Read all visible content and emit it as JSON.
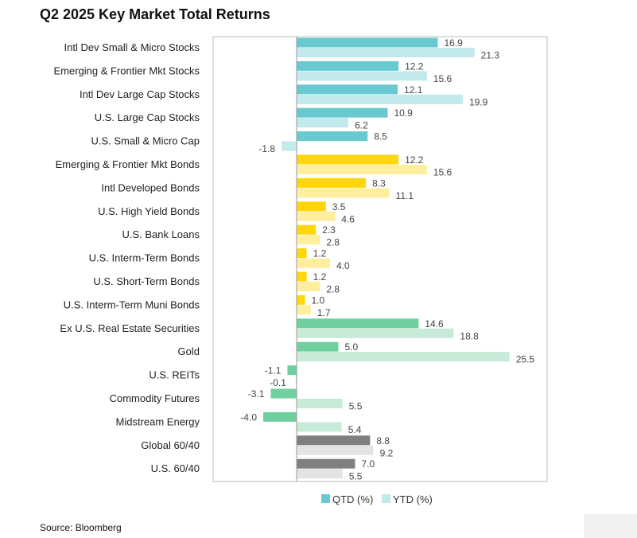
{
  "chart_data": {
    "type": "bar",
    "orientation": "horizontal",
    "title": "Q2 2025 Key Market Total Returns",
    "xlim": [
      -10,
      30
    ],
    "grid": false,
    "legend_position": "bottom",
    "categories": [
      "Intl Dev Small & Micro Stocks",
      "Emerging & Frontier Mkt Stocks",
      "Intl Dev Large Cap Stocks",
      "U.S. Large Cap Stocks",
      "U.S. Small & Micro Cap",
      "Emerging & Frontier Mkt Bonds",
      "Intl Developed Bonds",
      "U.S. High Yield Bonds",
      "U.S. Bank Loans",
      "U.S. Interm-Term Bonds",
      "U.S. Short-Term Bonds",
      "U.S. Interm-Term Muni Bonds",
      "Ex U.S. Real Estate Securities",
      "Gold",
      "U.S. REITs",
      "Commodity Futures",
      "Midstream Energy",
      "Global 60/40",
      "U.S. 60/40"
    ],
    "groups": [
      "equity",
      "equity",
      "equity",
      "equity",
      "equity",
      "bond",
      "bond",
      "bond",
      "bond",
      "bond",
      "bond",
      "bond",
      "real",
      "real",
      "real",
      "real",
      "real",
      "balanced",
      "balanced"
    ],
    "group_colors": {
      "equity": [
        "#68c9d0",
        "#c2eaed"
      ],
      "bond": [
        "#ffd60a",
        "#ffee9e"
      ],
      "real": [
        "#6fcf9f",
        "#c7ebd8"
      ],
      "balanced": [
        "#7f7f7f",
        "#e3e3e3"
      ]
    },
    "series": [
      {
        "name": "QTD (%)",
        "color": "#68c9d0",
        "values": [
          16.9,
          12.2,
          12.1,
          10.9,
          8.5,
          12.2,
          8.3,
          3.5,
          2.3,
          1.2,
          1.2,
          1.0,
          14.6,
          5.0,
          -1.1,
          -3.1,
          -4.0,
          8.8,
          7.0
        ]
      },
      {
        "name": "YTD (%)",
        "color": "#c2eaed",
        "values": [
          21.3,
          15.6,
          19.9,
          6.2,
          -1.8,
          15.6,
          11.1,
          4.6,
          2.8,
          4.0,
          2.8,
          1.7,
          18.8,
          25.5,
          -0.1,
          5.5,
          5.4,
          9.2,
          5.5
        ]
      }
    ]
  },
  "source": "Source: Bloomberg"
}
